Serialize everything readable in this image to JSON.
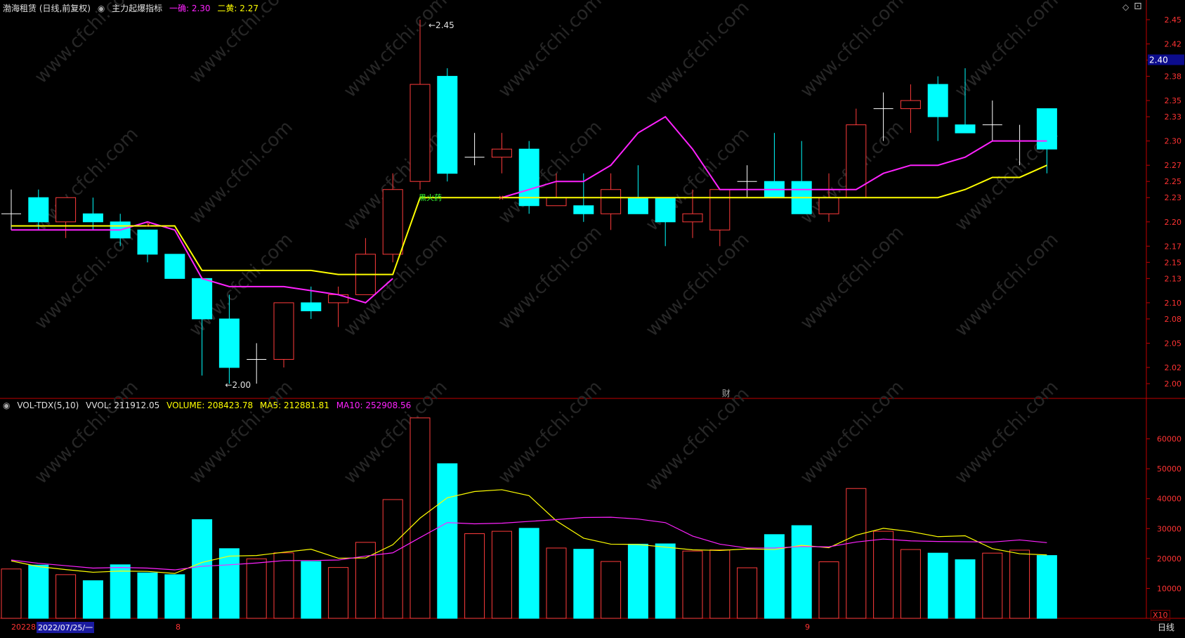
{
  "header": {
    "stock_title": "渤海租赁 (日线,前复权)",
    "indicator_name": "主力起爆指标",
    "line1_label": "一确: 2.30",
    "line2_label": "二黄: 2.27"
  },
  "volume_header": {
    "name": "VOL-TDX(5,10)",
    "vvol": "VVOL: 211912.05",
    "volume": "VOLUME: 208423.78",
    "ma5": "MA5: 212881.81",
    "ma10": "MA10: 252908.56"
  },
  "price_axis": {
    "ticks": [
      "2.45",
      "2.42",
      "2.40",
      "2.38",
      "2.35",
      "2.33",
      "2.30",
      "2.27",
      "2.25",
      "2.23",
      "2.20",
      "2.17",
      "2.15",
      "2.13",
      "2.10",
      "2.08",
      "2.05",
      "2.02",
      "2.00"
    ],
    "current_price": "2.40"
  },
  "volume_axis": {
    "ticks": [
      "60000",
      "50000",
      "40000",
      "30000",
      "20000",
      "10000"
    ],
    "multiplier": "X10"
  },
  "annotations": {
    "high": "2.45",
    "low": "2.00",
    "signal": "黑火药",
    "x_mark": "✕",
    "finance_mark": "财"
  },
  "date_bar": {
    "left_year": "20228",
    "cursor_date": "2022/07/25/一",
    "month_8": "8",
    "month_9": "9",
    "period": "日线"
  },
  "colors": {
    "up": "#ff3b3b",
    "down": "#00ffff",
    "line_magenta": "#ff22ff",
    "line_yellow": "#ffff00",
    "axis_red": "#c00000",
    "axis_text": "#ff3333"
  },
  "chart_data": {
    "type": "candlestick",
    "price": {
      "ylim": [
        2.0,
        2.45
      ],
      "candles": [
        {
          "o": 2.21,
          "h": 2.24,
          "l": 2.19,
          "c": 2.21
        },
        {
          "o": 2.23,
          "h": 2.24,
          "l": 2.19,
          "c": 2.2
        },
        {
          "o": 2.2,
          "h": 2.23,
          "l": 2.18,
          "c": 2.23
        },
        {
          "o": 2.21,
          "h": 2.23,
          "l": 2.19,
          "c": 2.2
        },
        {
          "o": 2.2,
          "h": 2.21,
          "l": 2.17,
          "c": 2.18
        },
        {
          "o": 2.19,
          "h": 2.19,
          "l": 2.15,
          "c": 2.16
        },
        {
          "o": 2.16,
          "h": 2.16,
          "l": 2.13,
          "c": 2.13
        },
        {
          "o": 2.13,
          "h": 2.13,
          "l": 2.01,
          "c": 2.08
        },
        {
          "o": 2.08,
          "h": 2.11,
          "l": 2.0,
          "c": 2.02
        },
        {
          "o": 2.03,
          "h": 2.05,
          "l": 2.0,
          "c": 2.03
        },
        {
          "o": 2.03,
          "h": 2.1,
          "l": 2.02,
          "c": 2.1
        },
        {
          "o": 2.1,
          "h": 2.12,
          "l": 2.08,
          "c": 2.09
        },
        {
          "o": 2.1,
          "h": 2.12,
          "l": 2.07,
          "c": 2.11
        },
        {
          "o": 2.11,
          "h": 2.18,
          "l": 2.11,
          "c": 2.16
        },
        {
          "o": 2.16,
          "h": 2.26,
          "l": 2.15,
          "c": 2.24
        },
        {
          "o": 2.25,
          "h": 2.45,
          "l": 2.24,
          "c": 2.37
        },
        {
          "o": 2.38,
          "h": 2.39,
          "l": 2.25,
          "c": 2.26
        },
        {
          "o": 2.28,
          "h": 2.31,
          "l": 2.27,
          "c": 2.28
        },
        {
          "o": 2.28,
          "h": 2.31,
          "l": 2.26,
          "c": 2.29
        },
        {
          "o": 2.29,
          "h": 2.3,
          "l": 2.21,
          "c": 2.22
        },
        {
          "o": 2.22,
          "h": 2.26,
          "l": 2.22,
          "c": 2.23
        },
        {
          "o": 2.22,
          "h": 2.26,
          "l": 2.2,
          "c": 2.21
        },
        {
          "o": 2.21,
          "h": 2.26,
          "l": 2.19,
          "c": 2.24
        },
        {
          "o": 2.23,
          "h": 2.27,
          "l": 2.21,
          "c": 2.21
        },
        {
          "o": 2.23,
          "h": 2.23,
          "l": 2.17,
          "c": 2.2
        },
        {
          "o": 2.2,
          "h": 2.24,
          "l": 2.18,
          "c": 2.21
        },
        {
          "o": 2.19,
          "h": 2.24,
          "l": 2.17,
          "c": 2.24
        },
        {
          "o": 2.25,
          "h": 2.27,
          "l": 2.23,
          "c": 2.25
        },
        {
          "o": 2.25,
          "h": 2.31,
          "l": 2.23,
          "c": 2.23
        },
        {
          "o": 2.25,
          "h": 2.3,
          "l": 2.21,
          "c": 2.21
        },
        {
          "o": 2.21,
          "h": 2.26,
          "l": 2.2,
          "c": 2.23
        },
        {
          "o": 2.23,
          "h": 2.34,
          "l": 2.23,
          "c": 2.32
        },
        {
          "o": 2.34,
          "h": 2.36,
          "l": 2.3,
          "c": 2.34
        },
        {
          "o": 2.34,
          "h": 2.37,
          "l": 2.31,
          "c": 2.35
        },
        {
          "o": 2.37,
          "h": 2.38,
          "l": 2.3,
          "c": 2.33
        },
        {
          "o": 2.32,
          "h": 2.39,
          "l": 2.31,
          "c": 2.31
        },
        {
          "o": 2.32,
          "h": 2.35,
          "l": 2.3,
          "c": 2.32
        },
        {
          "o": 2.3,
          "h": 2.32,
          "l": 2.27,
          "c": 2.3
        },
        {
          "o": 2.34,
          "h": 2.34,
          "l": 2.26,
          "c": 2.29
        }
      ],
      "series": [
        {
          "name": "一确",
          "color": "#ff22ff",
          "values": [
            2.19,
            2.19,
            2.19,
            2.19,
            2.19,
            2.2,
            2.19,
            2.13,
            2.12,
            2.12,
            2.12,
            2.115,
            2.11,
            2.1,
            2.13,
            null,
            null,
            null,
            2.23,
            2.24,
            2.25,
            2.25,
            2.27,
            2.31,
            2.33,
            2.29,
            2.24,
            2.24,
            2.24,
            2.24,
            2.24,
            2.24,
            2.26,
            2.27,
            2.27,
            2.28,
            2.3,
            2.3,
            2.3
          ]
        },
        {
          "name": "二黄",
          "color": "#ffff00",
          "values": [
            2.195,
            2.195,
            2.195,
            2.195,
            2.195,
            2.195,
            2.195,
            2.14,
            2.14,
            2.14,
            2.14,
            2.14,
            2.135,
            2.135,
            2.135,
            2.23,
            2.23,
            2.23,
            2.23,
            2.23,
            2.23,
            2.23,
            2.23,
            2.23,
            2.23,
            2.23,
            2.23,
            2.23,
            2.23,
            2.23,
            2.23,
            2.23,
            2.23,
            2.23,
            2.23,
            2.24,
            2.255,
            2.255,
            2.27
          ]
        }
      ]
    },
    "volume": {
      "ylim": [
        0,
        70000
      ],
      "values": [
        16500,
        17800,
        14600,
        12600,
        17900,
        15200,
        14600,
        33000,
        23300,
        19900,
        21900,
        19000,
        17000,
        25400,
        39700,
        67000,
        51700,
        28300,
        29100,
        30100,
        23500,
        23100,
        19000,
        24800,
        24900,
        22500,
        22900,
        16900,
        28000,
        31000,
        18900,
        43400,
        29100,
        23000,
        21800,
        19600,
        21800,
        22800,
        21000
      ],
      "ma5": [
        19200,
        17300,
        16300,
        15400,
        15800,
        15700,
        15000,
        18700,
        20800,
        21000,
        22100,
        23100,
        20100,
        20200,
        24600,
        33500,
        40300,
        42400,
        43000,
        41000,
        32600,
        26800,
        24800,
        24700,
        23800,
        22900,
        22700,
        23200,
        23000,
        24400,
        23600,
        27800,
        30100,
        29000,
        27300,
        27600,
        23300,
        21600,
        21200
      ],
      "ma10": [
        19500,
        18400,
        17600,
        16800,
        17000,
        16800,
        16200,
        17400,
        17900,
        18500,
        19300,
        19300,
        19500,
        20800,
        21900,
        27000,
        32000,
        31600,
        31800,
        32400,
        33000,
        33700,
        33800,
        33200,
        32000,
        27500,
        24800,
        23500,
        23500,
        24000,
        23900,
        25500,
        26500,
        25900,
        25700,
        25600,
        25500,
        26200,
        25300
      ]
    }
  }
}
